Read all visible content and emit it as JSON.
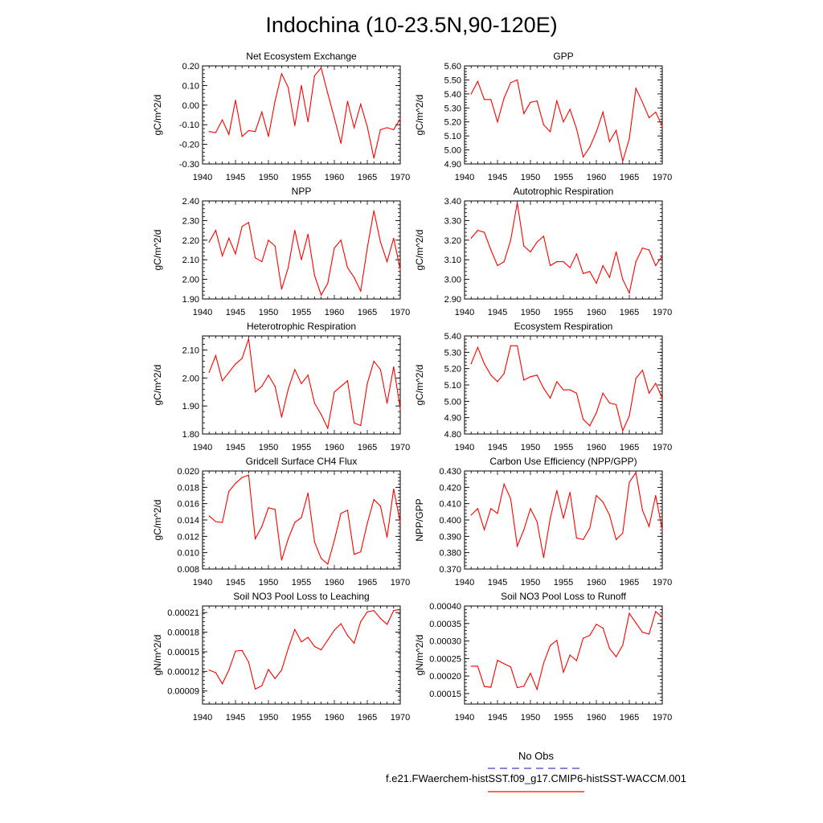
{
  "figure": {
    "title": "Indochina (10-23.5N,90-120E)",
    "line_color": "#ff0000",
    "obs_color": "#4040c0",
    "legend": [
      {
        "label": "No Obs",
        "style": "dashed",
        "color": "#4040c0"
      },
      {
        "label": "f.e21.FWaerchem-histSST.f09_g17.CMIP6-histSST-WACCM.001",
        "style": "solid",
        "color": "#ff0000"
      }
    ]
  },
  "chart_data": [
    {
      "type": "line",
      "title": "Net Ecosystem Exchange",
      "ylabel": "gC/m^2/d",
      "xlim": [
        1940,
        1970
      ],
      "ylim": [
        -0.3,
        0.2
      ],
      "x_ticks": [
        "1940",
        "1945",
        "1950",
        "1955",
        "1960",
        "1965",
        "1970"
      ],
      "y_ticks": [
        "-0.30",
        "-0.20",
        "-0.10",
        "0.00",
        "0.10",
        "0.20"
      ],
      "x": [
        1941,
        1942,
        1943,
        1944,
        1945,
        1946,
        1947,
        1948,
        1949,
        1950,
        1951,
        1952,
        1953,
        1954,
        1955,
        1956,
        1957,
        1958,
        1959,
        1960,
        1961,
        1962,
        1963,
        1964,
        1965,
        1966,
        1967,
        1968,
        1969,
        1970
      ],
      "values": [
        -0.135,
        -0.14,
        -0.075,
        -0.15,
        0.025,
        -0.16,
        -0.13,
        -0.135,
        -0.035,
        -0.16,
        0.02,
        0.16,
        0.09,
        -0.105,
        0.1,
        -0.085,
        0.15,
        0.19,
        0.06,
        -0.065,
        -0.195,
        0.02,
        -0.115,
        0.005,
        -0.11,
        -0.27,
        -0.125,
        -0.115,
        -0.125,
        -0.07
      ]
    },
    {
      "type": "line",
      "title": "GPP",
      "ylabel": "gC/m^2/d",
      "xlim": [
        1940,
        1970
      ],
      "ylim": [
        4.9,
        5.6
      ],
      "x_ticks": [
        "1940",
        "1945",
        "1950",
        "1955",
        "1960",
        "1965",
        "1970"
      ],
      "y_ticks": [
        "4.90",
        "5.00",
        "5.10",
        "5.20",
        "5.30",
        "5.40",
        "5.50",
        "5.60"
      ],
      "x": [
        1941,
        1942,
        1943,
        1944,
        1945,
        1946,
        1947,
        1948,
        1949,
        1950,
        1951,
        1952,
        1953,
        1954,
        1955,
        1956,
        1957,
        1958,
        1959,
        1960,
        1961,
        1962,
        1963,
        1964,
        1965,
        1966,
        1967,
        1968,
        1969,
        1970
      ],
      "values": [
        5.4,
        5.49,
        5.36,
        5.36,
        5.2,
        5.37,
        5.48,
        5.5,
        5.26,
        5.34,
        5.35,
        5.18,
        5.13,
        5.35,
        5.2,
        5.29,
        5.15,
        4.95,
        5.02,
        5.13,
        5.27,
        5.06,
        5.14,
        4.92,
        5.08,
        5.44,
        5.34,
        5.23,
        5.27,
        5.17
      ]
    },
    {
      "type": "line",
      "title": "NPP",
      "ylabel": "gC/m^2/d",
      "xlim": [
        1940,
        1970
      ],
      "ylim": [
        1.9,
        2.4
      ],
      "x_ticks": [
        "1940",
        "1945",
        "1950",
        "1955",
        "1960",
        "1965",
        "1970"
      ],
      "y_ticks": [
        "1.90",
        "2.00",
        "2.10",
        "2.20",
        "2.30",
        "2.40"
      ],
      "x": [
        1941,
        1942,
        1943,
        1944,
        1945,
        1946,
        1947,
        1948,
        1949,
        1950,
        1951,
        1952,
        1953,
        1954,
        1955,
        1956,
        1957,
        1958,
        1959,
        1960,
        1961,
        1962,
        1963,
        1964,
        1965,
        1966,
        1967,
        1968,
        1969,
        1970
      ],
      "values": [
        2.19,
        2.25,
        2.12,
        2.21,
        2.13,
        2.27,
        2.29,
        2.11,
        2.09,
        2.2,
        2.17,
        1.95,
        2.06,
        2.25,
        2.1,
        2.23,
        2.02,
        1.92,
        1.98,
        2.16,
        2.2,
        2.06,
        2.01,
        1.94,
        2.16,
        2.35,
        2.19,
        2.09,
        2.21,
        2.05
      ]
    },
    {
      "type": "line",
      "title": "Autotrophic Respiration",
      "ylabel": "gC/m^2/d",
      "xlim": [
        1940,
        1970
      ],
      "ylim": [
        2.9,
        3.4
      ],
      "x_ticks": [
        "1940",
        "1945",
        "1950",
        "1955",
        "1960",
        "1965",
        "1970"
      ],
      "y_ticks": [
        "2.90",
        "3.00",
        "3.10",
        "3.20",
        "3.30",
        "3.40"
      ],
      "x": [
        1941,
        1942,
        1943,
        1944,
        1945,
        1946,
        1947,
        1948,
        1949,
        1950,
        1951,
        1952,
        1953,
        1954,
        1955,
        1956,
        1957,
        1958,
        1959,
        1960,
        1961,
        1962,
        1963,
        1964,
        1965,
        1966,
        1967,
        1968,
        1969,
        1970
      ],
      "values": [
        3.21,
        3.25,
        3.24,
        3.15,
        3.07,
        3.09,
        3.2,
        3.39,
        3.17,
        3.14,
        3.19,
        3.22,
        3.07,
        3.09,
        3.09,
        3.06,
        3.13,
        3.03,
        3.04,
        2.98,
        3.07,
        3.01,
        3.14,
        3.0,
        2.93,
        3.09,
        3.16,
        3.15,
        3.07,
        3.12
      ]
    },
    {
      "type": "line",
      "title": "Heterotrophic Respiration",
      "ylabel": "gC/m^2/d",
      "xlim": [
        1940,
        1970
      ],
      "ylim": [
        1.8,
        2.15
      ],
      "x_ticks": [
        "1940",
        "1945",
        "1950",
        "1955",
        "1960",
        "1965",
        "1970"
      ],
      "y_ticks": [
        "1.80",
        "1.90",
        "2.00",
        "2.10"
      ],
      "x": [
        1941,
        1942,
        1943,
        1944,
        1945,
        1946,
        1947,
        1948,
        1949,
        1950,
        1951,
        1952,
        1953,
        1954,
        1955,
        1956,
        1957,
        1958,
        1959,
        1960,
        1961,
        1962,
        1963,
        1964,
        1965,
        1966,
        1967,
        1968,
        1969,
        1970
      ],
      "values": [
        2.02,
        2.08,
        1.99,
        2.02,
        2.05,
        2.07,
        2.14,
        1.95,
        1.97,
        2.01,
        1.97,
        1.86,
        1.96,
        2.03,
        1.98,
        2.01,
        1.91,
        1.87,
        1.82,
        1.95,
        1.97,
        1.99,
        1.84,
        1.83,
        1.98,
        2.06,
        2.03,
        1.91,
        2.04,
        1.89
      ]
    },
    {
      "type": "line",
      "title": "Ecosystem Respiration",
      "ylabel": "gC/m^2/d",
      "xlim": [
        1940,
        1970
      ],
      "ylim": [
        4.8,
        5.4
      ],
      "x_ticks": [
        "1940",
        "1945",
        "1950",
        "1955",
        "1960",
        "1965",
        "1970"
      ],
      "y_ticks": [
        "4.80",
        "4.90",
        "5.00",
        "5.10",
        "5.20",
        "5.30",
        "5.40"
      ],
      "x": [
        1941,
        1942,
        1943,
        1944,
        1945,
        1946,
        1947,
        1948,
        1949,
        1950,
        1951,
        1952,
        1953,
        1954,
        1955,
        1956,
        1957,
        1958,
        1959,
        1960,
        1961,
        1962,
        1963,
        1964,
        1965,
        1966,
        1967,
        1968,
        1969,
        1970
      ],
      "values": [
        5.23,
        5.33,
        5.23,
        5.16,
        5.12,
        5.17,
        5.34,
        5.34,
        5.13,
        5.15,
        5.16,
        5.08,
        5.02,
        5.12,
        5.07,
        5.07,
        5.05,
        4.89,
        4.85,
        4.93,
        5.05,
        4.99,
        4.98,
        4.82,
        4.91,
        5.14,
        5.19,
        5.05,
        5.11,
        5.02
      ]
    },
    {
      "type": "line",
      "title": "Gridcell Surface CH4 Flux",
      "ylabel": "gC/m^2/d",
      "xlim": [
        1940,
        1970
      ],
      "ylim": [
        0.008,
        0.02
      ],
      "x_ticks": [
        "1940",
        "1945",
        "1950",
        "1955",
        "1960",
        "1965",
        "1970"
      ],
      "y_ticks": [
        "0.008",
        "0.010",
        "0.012",
        "0.014",
        "0.016",
        "0.018",
        "0.020"
      ],
      "x": [
        1941,
        1942,
        1943,
        1944,
        1945,
        1946,
        1947,
        1948,
        1949,
        1950,
        1951,
        1952,
        1953,
        1954,
        1955,
        1956,
        1957,
        1958,
        1959,
        1960,
        1961,
        1962,
        1963,
        1964,
        1965,
        1966,
        1967,
        1968,
        1969,
        1970
      ],
      "values": [
        0.0145,
        0.0138,
        0.0137,
        0.0175,
        0.0185,
        0.0192,
        0.0195,
        0.0117,
        0.0132,
        0.0155,
        0.0153,
        0.0091,
        0.0117,
        0.0137,
        0.0143,
        0.0173,
        0.0113,
        0.0093,
        0.0086,
        0.0115,
        0.0148,
        0.0152,
        0.0098,
        0.0101,
        0.0136,
        0.0165,
        0.0157,
        0.0119,
        0.0178,
        0.0137
      ]
    },
    {
      "type": "line",
      "title": "Carbon Use Efficiency (NPP/GPP)",
      "ylabel": "NPP/GPP",
      "xlim": [
        1940,
        1970
      ],
      "ylim": [
        0.37,
        0.43
      ],
      "x_ticks": [
        "1940",
        "1945",
        "1950",
        "1955",
        "1960",
        "1965",
        "1970"
      ],
      "y_ticks": [
        "0.370",
        "0.380",
        "0.390",
        "0.400",
        "0.410",
        "0.420",
        "0.430"
      ],
      "x": [
        1941,
        1942,
        1943,
        1944,
        1945,
        1946,
        1947,
        1948,
        1949,
        1950,
        1951,
        1952,
        1953,
        1954,
        1955,
        1956,
        1957,
        1958,
        1959,
        1960,
        1961,
        1962,
        1963,
        1964,
        1965,
        1966,
        1967,
        1968,
        1969,
        1970
      ],
      "values": [
        0.403,
        0.407,
        0.394,
        0.407,
        0.404,
        0.422,
        0.413,
        0.384,
        0.394,
        0.407,
        0.399,
        0.377,
        0.401,
        0.418,
        0.401,
        0.417,
        0.389,
        0.388,
        0.395,
        0.415,
        0.411,
        0.403,
        0.388,
        0.392,
        0.423,
        0.429,
        0.406,
        0.396,
        0.415,
        0.394
      ]
    },
    {
      "type": "line",
      "title": "Soil NO3 Pool Loss to Leaching",
      "ylabel": "gN/m^2/d",
      "xlim": [
        1940,
        1970
      ],
      "ylim": [
        7e-05,
        0.00022
      ],
      "x_ticks": [
        "1940",
        "1945",
        "1950",
        "1955",
        "1960",
        "1965",
        "1970"
      ],
      "y_ticks": [
        "0.00009",
        "0.00012",
        "0.00015",
        "0.00018",
        "0.00021"
      ],
      "x": [
        1941,
        1942,
        1943,
        1944,
        1945,
        1946,
        1947,
        1948,
        1949,
        1950,
        1951,
        1952,
        1953,
        1954,
        1955,
        1956,
        1957,
        1958,
        1959,
        1960,
        1961,
        1962,
        1963,
        1964,
        1965,
        1966,
        1967,
        1968,
        1969,
        1970
      ],
      "values": [
        0.000122,
        0.000118,
        0.000101,
        0.000122,
        0.000151,
        0.000152,
        0.000134,
        9.3e-05,
        9.8e-05,
        0.000123,
        0.000109,
        0.000122,
        0.000155,
        0.000184,
        0.000165,
        0.000172,
        0.000158,
        0.000153,
        0.000168,
        0.000183,
        0.000193,
        0.000175,
        0.000163,
        0.000196,
        0.000211,
        0.000213,
        0.000201,
        0.000192,
        0.000213,
        0.000215
      ]
    },
    {
      "type": "line",
      "title": "Soil NO3 Pool Loss to Runoff",
      "ylabel": "gN/m^2/d",
      "xlim": [
        1940,
        1970
      ],
      "ylim": [
        0.00012,
        0.0004
      ],
      "x_ticks": [
        "1940",
        "1945",
        "1950",
        "1955",
        "1960",
        "1965",
        "1970"
      ],
      "y_ticks": [
        "0.00015",
        "0.00020",
        "0.00025",
        "0.00030",
        "0.00035",
        "0.00040"
      ],
      "x": [
        1941,
        1942,
        1943,
        1944,
        1945,
        1946,
        1947,
        1948,
        1949,
        1950,
        1951,
        1952,
        1953,
        1954,
        1955,
        1956,
        1957,
        1958,
        1959,
        1960,
        1961,
        1962,
        1963,
        1964,
        1965,
        1966,
        1967,
        1968,
        1969,
        1970
      ],
      "values": [
        0.000228,
        0.000228,
        0.00017,
        0.000168,
        0.000245,
        0.000235,
        0.000226,
        0.000167,
        0.000171,
        0.000208,
        0.000162,
        0.000237,
        0.000287,
        0.000302,
        0.000211,
        0.00026,
        0.000244,
        0.000308,
        0.000316,
        0.000348,
        0.000337,
        0.000279,
        0.000255,
        0.000288,
        0.000379,
        0.000352,
        0.000325,
        0.00032,
        0.000384,
        0.000368
      ]
    }
  ]
}
